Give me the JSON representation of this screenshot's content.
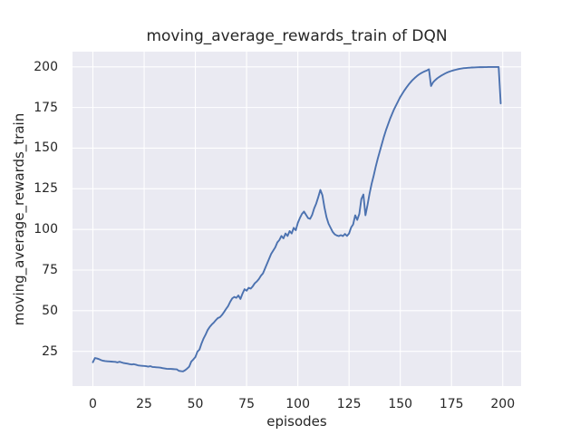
{
  "figure": {
    "title": "moving_average_rewards_train of DQN"
  },
  "chart_data": {
    "type": "line",
    "title": "moving_average_rewards_train of DQN",
    "xlabel": "episodes",
    "ylabel": "moving_average_rewards_train",
    "x_ticks": [
      0,
      25,
      50,
      75,
      100,
      125,
      150,
      175,
      200
    ],
    "y_ticks": [
      25,
      50,
      75,
      100,
      125,
      150,
      175,
      200
    ],
    "xlim": [
      -9.95,
      208.95
    ],
    "ylim": [
      3.65,
      209.35
    ],
    "grid": true,
    "legend": null,
    "style": {
      "fig_bg": "#FFFFFF",
      "plot_bg": "#EAEAF2",
      "grid_color": "#FFFFFF",
      "line_color": "#4C72B0",
      "text_color": "#262626"
    },
    "series": [
      {
        "name": "moving_average_rewards_train",
        "x": [
          0,
          1,
          2,
          3,
          4,
          5,
          6,
          7,
          8,
          9,
          10,
          11,
          12,
          13,
          14,
          15,
          16,
          17,
          18,
          19,
          20,
          21,
          22,
          23,
          24,
          25,
          26,
          27,
          28,
          29,
          30,
          31,
          32,
          33,
          34,
          35,
          36,
          37,
          38,
          39,
          40,
          41,
          42,
          43,
          44,
          45,
          46,
          47,
          48,
          49,
          50,
          51,
          52,
          53,
          54,
          55,
          56,
          57,
          58,
          59,
          60,
          61,
          62,
          63,
          64,
          65,
          66,
          67,
          68,
          69,
          70,
          71,
          72,
          73,
          74,
          75,
          76,
          77,
          78,
          79,
          80,
          81,
          82,
          83,
          84,
          85,
          86,
          87,
          88,
          89,
          90,
          91,
          92,
          93,
          94,
          95,
          96,
          97,
          98,
          99,
          100,
          101,
          102,
          103,
          104,
          105,
          106,
          107,
          108,
          109,
          110,
          111,
          112,
          113,
          114,
          115,
          116,
          117,
          118,
          119,
          120,
          121,
          122,
          123,
          124,
          125,
          126,
          127,
          128,
          129,
          130,
          131,
          132,
          133,
          134,
          135,
          136,
          137,
          138,
          139,
          140,
          141,
          142,
          143,
          144,
          145,
          146,
          147,
          148,
          149,
          150,
          151,
          152,
          153,
          154,
          155,
          156,
          157,
          158,
          159,
          160,
          161,
          162,
          163,
          164,
          165,
          166,
          167,
          168,
          169,
          170,
          171,
          172,
          173,
          174,
          175,
          176,
          177,
          178,
          179,
          180,
          181,
          182,
          183,
          184,
          185,
          186,
          187,
          188,
          189,
          190,
          191,
          192,
          193,
          194,
          195,
          196,
          197,
          198,
          199
        ],
        "y": [
          18.3,
          20.9,
          20.6,
          20.2,
          19.6,
          19.2,
          19.0,
          18.9,
          18.8,
          18.7,
          18.6,
          18.5,
          18.2,
          18.6,
          18.2,
          17.8,
          17.6,
          17.4,
          17.1,
          16.9,
          17.1,
          16.8,
          16.4,
          16.2,
          16.1,
          16.0,
          15.9,
          15.6,
          15.9,
          15.4,
          15.3,
          15.2,
          15.1,
          15.0,
          14.7,
          14.5,
          14.3,
          14.2,
          14.2,
          14.1,
          14.0,
          13.9,
          13.0,
          12.8,
          12.7,
          13.4,
          14.4,
          15.6,
          18.7,
          20.0,
          21.5,
          24.8,
          26.1,
          29.8,
          32.9,
          35.3,
          38.1,
          40.0,
          41.5,
          42.7,
          44.2,
          45.5,
          46.0,
          47.4,
          49.2,
          51.1,
          52.9,
          55.5,
          57.6,
          58.5,
          57.9,
          59.4,
          57.2,
          60.5,
          63.2,
          62.3,
          64.1,
          63.6,
          65.0,
          66.9,
          68.0,
          69.5,
          71.5,
          73.0,
          76.0,
          79.0,
          82.0,
          85.0,
          87.0,
          89.0,
          92.0,
          93.5,
          96.0,
          94.5,
          97.5,
          96.0,
          99.0,
          97.5,
          101.0,
          99.5,
          104.0,
          107.0,
          109.5,
          111.0,
          109.0,
          107.0,
          106.5,
          109.0,
          113.0,
          116.0,
          120.0,
          124.3,
          121.0,
          113.5,
          107.5,
          103.5,
          101.0,
          98.5,
          97.0,
          96.3,
          95.9,
          96.5,
          95.9,
          97.2,
          96.0,
          97.5,
          101.2,
          103.1,
          108.7,
          105.9,
          109.5,
          118.7,
          121.5,
          108.7,
          115.0,
          122.0,
          128.0,
          133.0,
          138.5,
          143.5,
          148.0,
          152.5,
          157.0,
          161.0,
          164.5,
          168.0,
          171.0,
          174.0,
          176.5,
          179.0,
          181.5,
          183.5,
          185.5,
          187.3,
          189.0,
          190.5,
          191.9,
          193.1,
          194.2,
          195.2,
          196.0,
          196.7,
          197.3,
          197.8,
          198.5,
          188.2,
          190.5,
          191.8,
          192.9,
          193.8,
          194.6,
          195.3,
          196.0,
          196.6,
          197.1,
          197.5,
          197.9,
          198.2,
          198.5,
          198.8,
          199.0,
          199.2,
          199.3,
          199.4,
          199.5,
          199.6,
          199.65,
          199.7,
          199.75,
          199.8,
          199.8,
          199.85,
          199.85,
          199.9,
          199.9,
          199.9,
          199.9,
          199.9,
          199.9,
          177.5
        ]
      }
    ]
  }
}
